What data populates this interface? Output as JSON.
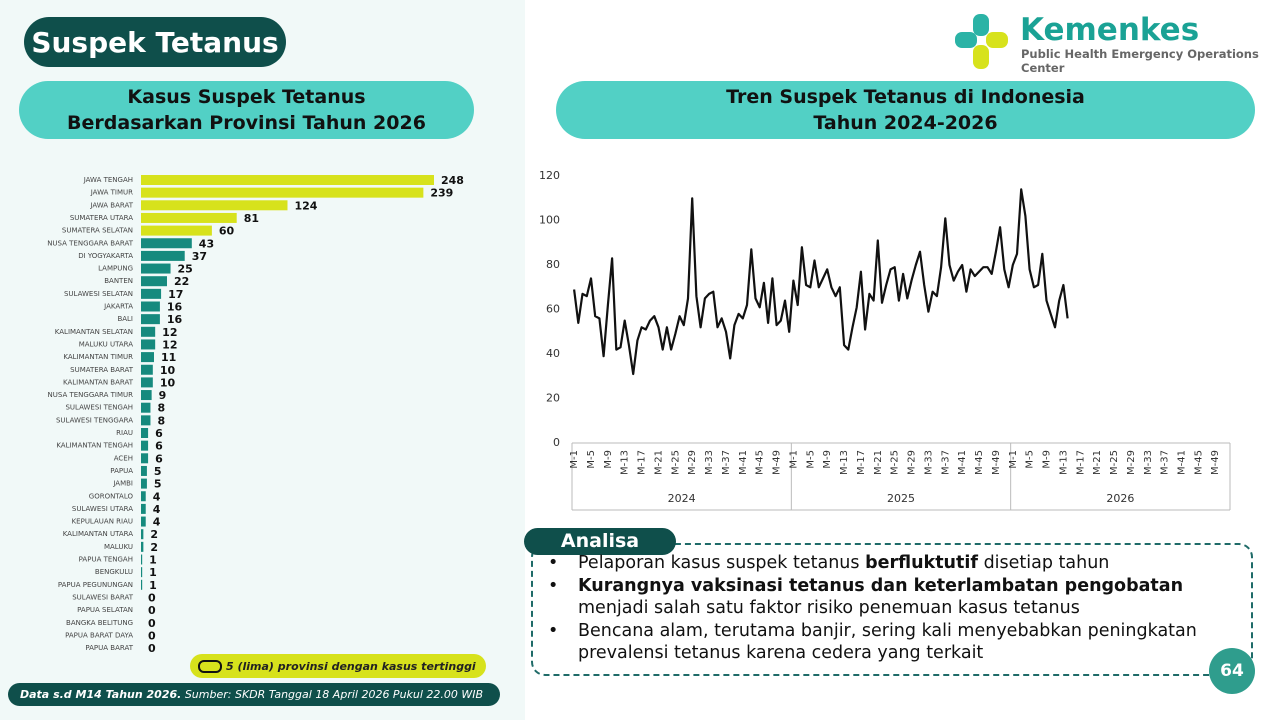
{
  "header": {
    "title": "Suspek Tetanus",
    "logo_name": "Kemenkes",
    "logo_subtitle": "Public Health Emergency Operations Center"
  },
  "chart_data": [
    {
      "type": "bar",
      "orientation": "horizontal",
      "title": [
        "Kasus Suspek Tetanus",
        "Berdasarkan Provinsi Tahun 2026"
      ],
      "categories": [
        "JAWA TENGAH",
        "JAWA TIMUR",
        "JAWA BARAT",
        "SUMATERA UTARA",
        "SUMATERA SELATAN",
        "NUSA TENGGARA BARAT",
        "DI YOGYAKARTA",
        "LAMPUNG",
        "BANTEN",
        "SULAWESI SELATAN",
        "JAKARTA",
        "BALI",
        "KALIMANTAN SELATAN",
        "MALUKU UTARA",
        "KALIMANTAN TIMUR",
        "SUMATERA BARAT",
        "KALIMANTAN BARAT",
        "NUSA TENGGARA TIMUR",
        "SULAWESI TENGAH",
        "SULAWESI TENGGARA",
        "RIAU",
        "KALIMANTAN TENGAH",
        "ACEH",
        "PAPUA",
        "JAMBI",
        "GORONTALO",
        "SULAWESI UTARA",
        "KEPULAUAN RIAU",
        "KALIMANTAN UTARA",
        "MALUKU",
        "PAPUA TENGAH",
        "BENGKULU",
        "PAPUA PEGUNUNGAN",
        "SULAWESI BARAT",
        "PAPUA SELATAN",
        "BANGKA BELITUNG",
        "PAPUA BARAT DAYA",
        "PAPUA BARAT"
      ],
      "values": [
        248,
        239,
        124,
        81,
        60,
        43,
        37,
        25,
        22,
        17,
        16,
        16,
        12,
        12,
        11,
        10,
        10,
        9,
        8,
        8,
        6,
        6,
        6,
        5,
        5,
        4,
        4,
        4,
        2,
        2,
        1,
        1,
        1,
        0,
        0,
        0,
        0,
        0
      ],
      "colors": [
        "#d7e21c",
        "#d7e21c",
        "#d7e21c",
        "#d7e21c",
        "#d7e21c",
        "#168a7e",
        "#168a7e",
        "#168a7e",
        "#168a7e",
        "#168a7e",
        "#168a7e",
        "#168a7e",
        "#168a7e",
        "#168a7e",
        "#168a7e",
        "#168a7e",
        "#168a7e",
        "#168a7e",
        "#168a7e",
        "#168a7e",
        "#168a7e",
        "#168a7e",
        "#168a7e",
        "#168a7e",
        "#168a7e",
        "#168a7e",
        "#168a7e",
        "#168a7e",
        "#168a7e",
        "#168a7e",
        "#168a7e",
        "#168a7e",
        "#168a7e",
        "#168a7e",
        "#168a7e",
        "#168a7e",
        "#168a7e",
        "#168a7e"
      ],
      "note": "5 (lima) provinsi dengan kasus tertinggi"
    },
    {
      "type": "line",
      "title": [
        "Tren Suspek Tetanus di Indonesia",
        "Tahun 2024-2026"
      ],
      "categories": [
        "M-1",
        null,
        null,
        null,
        "M-5",
        null,
        null,
        null,
        "M-9",
        null,
        null,
        null,
        "M-13",
        null,
        null,
        null,
        "M-17",
        null,
        null,
        null,
        "M-21",
        null,
        null,
        null,
        "M-25",
        null,
        null,
        null,
        "M-29",
        null,
        null,
        null,
        "M-33",
        null,
        null,
        null,
        "M-37",
        null,
        null,
        null,
        "M-41",
        null,
        null,
        null,
        "M-45",
        null,
        null,
        null,
        "M-49",
        null,
        null,
        null,
        "M-1",
        null,
        null,
        null,
        "M-5",
        null,
        null,
        null,
        "M-9",
        null,
        null,
        null,
        "M-13",
        null,
        null,
        null,
        "M-17",
        null,
        null,
        null,
        "M-21",
        null,
        null,
        null,
        "M-25",
        null,
        null,
        null,
        "M-29",
        null,
        null,
        null,
        "M-33",
        null,
        null,
        null,
        "M-37",
        null,
        null,
        null,
        "M-41",
        null,
        null,
        null,
        "M-45",
        null,
        null,
        null,
        "M-49",
        null,
        null,
        null,
        "M-1",
        null,
        null,
        null,
        "M-5",
        null,
        null,
        null,
        "M-9",
        null,
        null,
        null,
        "M-13",
        null,
        null,
        null,
        "M-17",
        null,
        null,
        null,
        "M-21",
        null,
        null,
        null,
        "M-25",
        null,
        null,
        null,
        "M-29",
        null,
        null,
        null,
        "M-33",
        null,
        null,
        null,
        "M-37",
        null,
        null,
        null,
        "M-41",
        null,
        null,
        null,
        "M-45",
        null,
        null,
        null,
        "M-49",
        null,
        null,
        null
      ],
      "groups": [
        "2024",
        "2025",
        "2026"
      ],
      "values": [
        69,
        54,
        67,
        66,
        74,
        57,
        56,
        39,
        62,
        83,
        42,
        43,
        55,
        44,
        31,
        46,
        52,
        51,
        55,
        57,
        52,
        42,
        52,
        42,
        49,
        57,
        53,
        65,
        110,
        66,
        52,
        65,
        67,
        68,
        52,
        56,
        50,
        38,
        53,
        58,
        56,
        62,
        87,
        65,
        61,
        72,
        54,
        74,
        53,
        55,
        64,
        50,
        73,
        62,
        88,
        71,
        70,
        82,
        70,
        74,
        78,
        70,
        66,
        70,
        44,
        42,
        52,
        61,
        77,
        51,
        67,
        64,
        91,
        63,
        71,
        78,
        79,
        64,
        76,
        65,
        73,
        80,
        86,
        71,
        59,
        68,
        66,
        79,
        101,
        80,
        73,
        77,
        80,
        68,
        78,
        75,
        77,
        79,
        79,
        76,
        86,
        97,
        78,
        70,
        80,
        85,
        114,
        102,
        78,
        70,
        71,
        85,
        64,
        58,
        52,
        64,
        71,
        56,
        null,
        null,
        null,
        null,
        null,
        null,
        null,
        null,
        null,
        null,
        null,
        null,
        null,
        null,
        null,
        null,
        null,
        null,
        null,
        null,
        null,
        null,
        null,
        null,
        null,
        null,
        null,
        null,
        null,
        null,
        null,
        null,
        null,
        null,
        null,
        null,
        null,
        null
      ],
      "color": "#111111",
      "ylim": [
        0,
        120
      ],
      "yticks": [
        0,
        20,
        40,
        60,
        80,
        100,
        120
      ],
      "grid": false
    }
  ],
  "analysis": {
    "title": "Analisa",
    "items": [
      [
        {
          "text": "Pelaporan kasus suspek tetanus "
        },
        {
          "text": "berfluktutif",
          "bold": true
        },
        {
          "text": " disetiap tahun"
        }
      ],
      [
        {
          "text": "Kurangnya vaksinasi tetanus dan keterlambatan pengobatan",
          "bold": true
        },
        {
          "text": " menjadi salah satu faktor risiko penemuan kasus tetanus"
        }
      ],
      [
        {
          "text": "Bencana alam, terutama banjir, sering kali menyebabkan peningkatan prevalensi tetanus karena cedera yang terkait"
        }
      ]
    ]
  },
  "footer": {
    "data_note": "Data s.d M14 Tahun 2026.",
    "source": "Sumber: SKDR Tanggal 18 April 2026 Pukul 22.00 WIB"
  },
  "page_number": "64"
}
